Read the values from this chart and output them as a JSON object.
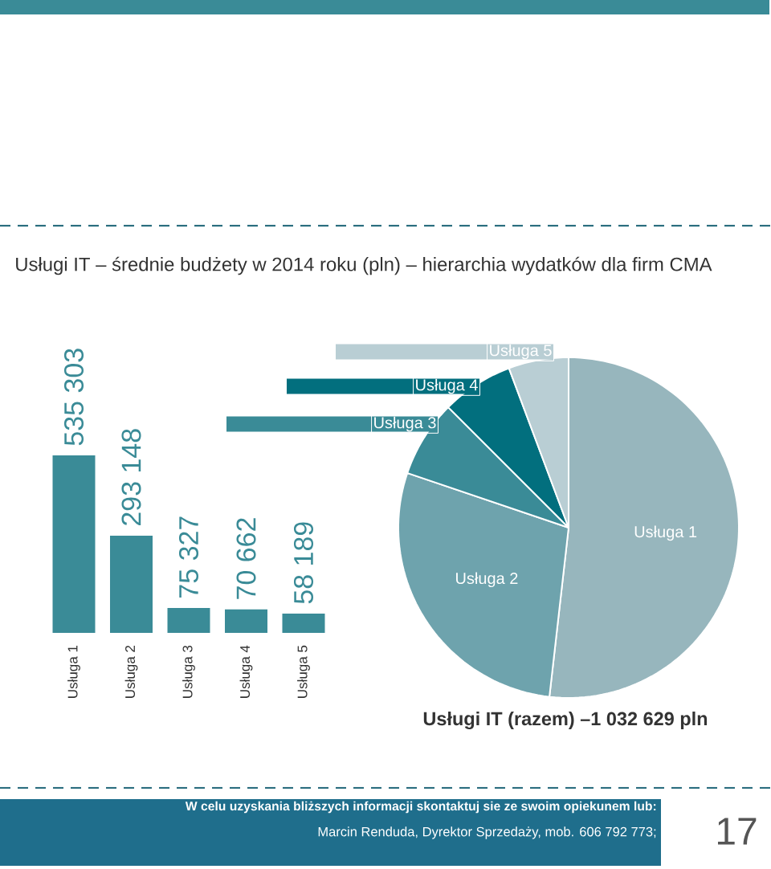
{
  "chart_data": [
    {
      "type": "bar",
      "title": "Usługi IT – średnie budżety w 2014 roku (pln) – hierarchia wydatków dla firm CMA",
      "categories": [
        "Usługa 1",
        "Usługa 2",
        "Usługa 3",
        "Usługa 4",
        "Usługa 5"
      ],
      "values": [
        535303,
        293148,
        75327,
        70662,
        58189
      ],
      "value_labels": [
        "535 303",
        "293 148",
        "75 327",
        "70 662",
        "58 189"
      ],
      "color": "#3a8b97"
    },
    {
      "type": "pie",
      "categories": [
        "Usługa 1",
        "Usługa 2",
        "Usługa 3",
        "Usługa 4",
        "Usługa 5"
      ],
      "values": [
        51.8,
        28.4,
        7.3,
        6.8,
        5.7
      ],
      "colors": [
        "#97b6bd",
        "#6ea3ad",
        "#3a8b97",
        "#026f7e",
        "#b9ced4"
      ],
      "annotations": [
        "Usługi IT (razem) –1 032 629 pln",
        "W celu uzyskania bliższych informacji skontaktuj sie ze swoim opiekunem lub:",
        "Marcin Renduda, Dyrektor Sprzedaży, mob. 606 792 773;",
        "17"
      ]
    }
  ]
}
